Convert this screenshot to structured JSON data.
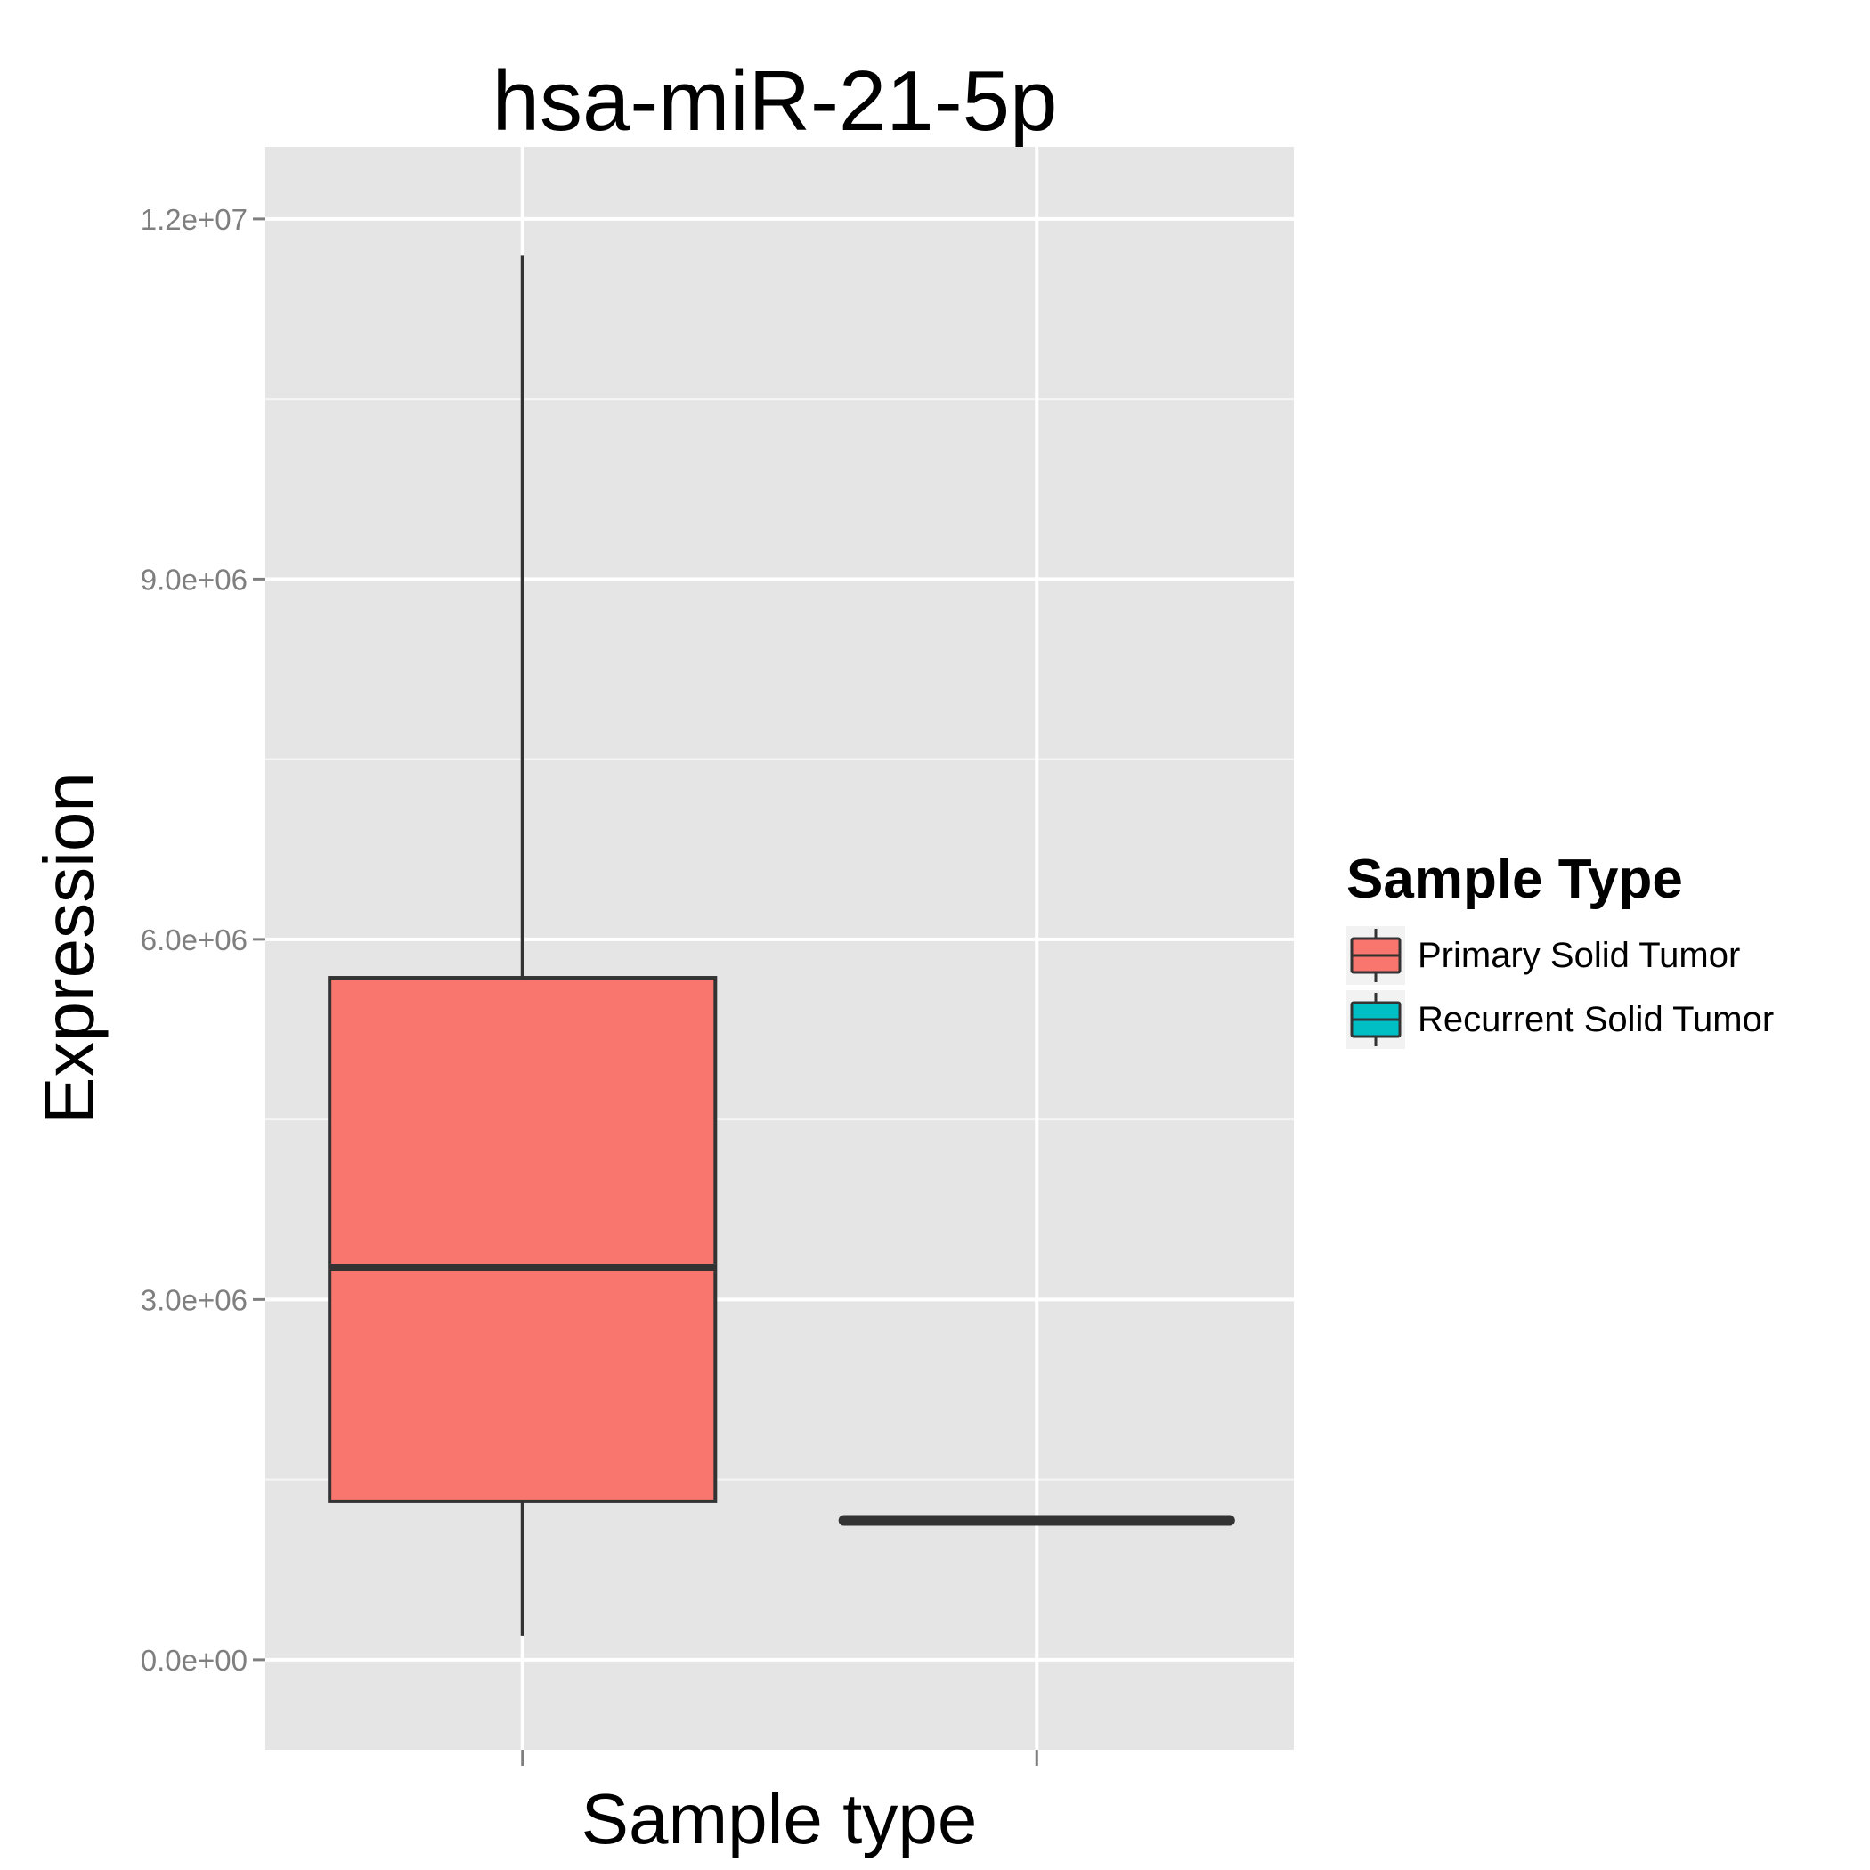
{
  "chart_data": {
    "type": "boxplot",
    "title": "hsa-miR-21-5p",
    "xlabel": "Sample type",
    "ylabel": "Expression",
    "ylim": [
      -750000,
      12600000
    ],
    "yticks": [
      0,
      3000000,
      6000000,
      9000000,
      12000000
    ],
    "ytick_labels": [
      "0.0e+00",
      "3.0e+06",
      "6.0e+06",
      "9.0e+06",
      "1.2e+07"
    ],
    "x_tick_labels": [
      "",
      ""
    ],
    "grid": true,
    "legend": {
      "title": "Sample Type",
      "placement": "right",
      "entries": [
        {
          "label": "Primary Solid Tumor",
          "color": "#F8766D"
        },
        {
          "label": "Recurrent Solid Tumor",
          "color": "#00BFC4"
        }
      ]
    },
    "series": [
      {
        "name": "Primary Solid Tumor",
        "color": "#F8766D",
        "min": 200000,
        "q1": 1320000,
        "median": 3270000,
        "q3": 5680000,
        "max": 11700000
      },
      {
        "name": "Recurrent Solid Tumor",
        "color": "#00BFC4",
        "min": 1160000,
        "q1": 1160000,
        "median": 1160000,
        "q3": 1160000,
        "max": 1160000
      }
    ],
    "colors": {
      "panel_background": "#E5E5E5",
      "grid": "#FFFFFF",
      "box_outline": "#333333",
      "tick_label": "#7F7F7F"
    }
  }
}
